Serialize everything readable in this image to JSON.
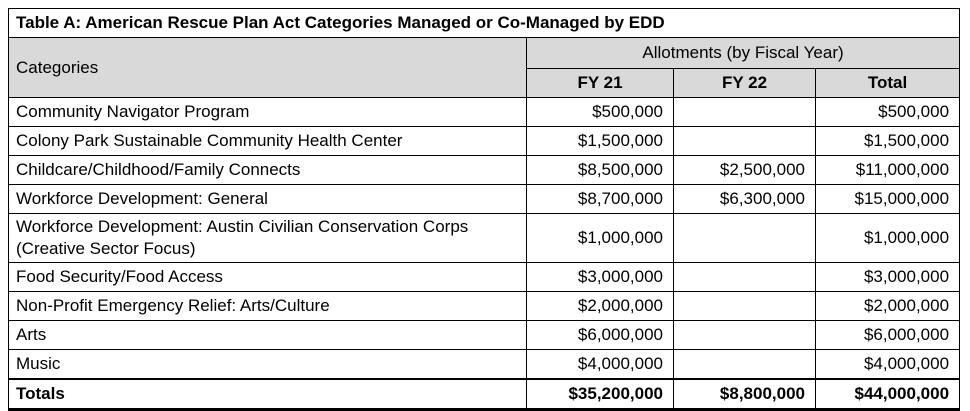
{
  "table": {
    "title": "Table A: American Rescue Plan Act Categories Managed or Co-Managed by EDD",
    "header": {
      "categories_label": "Categories",
      "group_label": "Allotments (by Fiscal Year)",
      "columns": [
        "FY 21",
        "FY 22",
        "Total"
      ]
    },
    "rows": [
      {
        "category": "Community Navigator Program",
        "fy21": "$500,000",
        "fy22": "",
        "total": "$500,000"
      },
      {
        "category": "Colony Park Sustainable Community Health Center",
        "fy21": "$1,500,000",
        "fy22": "",
        "total": "$1,500,000"
      },
      {
        "category": "Childcare/Childhood/Family Connects",
        "fy21": "$8,500,000",
        "fy22": "$2,500,000",
        "total": "$11,000,000"
      },
      {
        "category": "Workforce Development: General",
        "fy21": "$8,700,000",
        "fy22": "$6,300,000",
        "total": "$15,000,000"
      },
      {
        "category": "Workforce Development: Austin Civilian Conservation Corps (Creative Sector Focus)",
        "fy21": "$1,000,000",
        "fy22": "",
        "total": "$1,000,000"
      },
      {
        "category": "Food Security/Food Access",
        "fy21": "$3,000,000",
        "fy22": "",
        "total": "$3,000,000"
      },
      {
        "category": "Non-Profit Emergency Relief: Arts/Culture",
        "fy21": "$2,000,000",
        "fy22": "",
        "total": "$2,000,000"
      },
      {
        "category": "Arts",
        "fy21": "$6,000,000",
        "fy22": "",
        "total": "$6,000,000"
      },
      {
        "category": "Music",
        "fy21": "$4,000,000",
        "fy22": "",
        "total": "$4,000,000"
      }
    ],
    "totals": {
      "label": "Totals",
      "fy21": "$35,200,000",
      "fy22": "$8,800,000",
      "total": "$44,000,000"
    },
    "colors": {
      "header_bg": "#d9d9d9",
      "border": "#000000",
      "text": "#000000",
      "background": "#ffffff"
    }
  }
}
